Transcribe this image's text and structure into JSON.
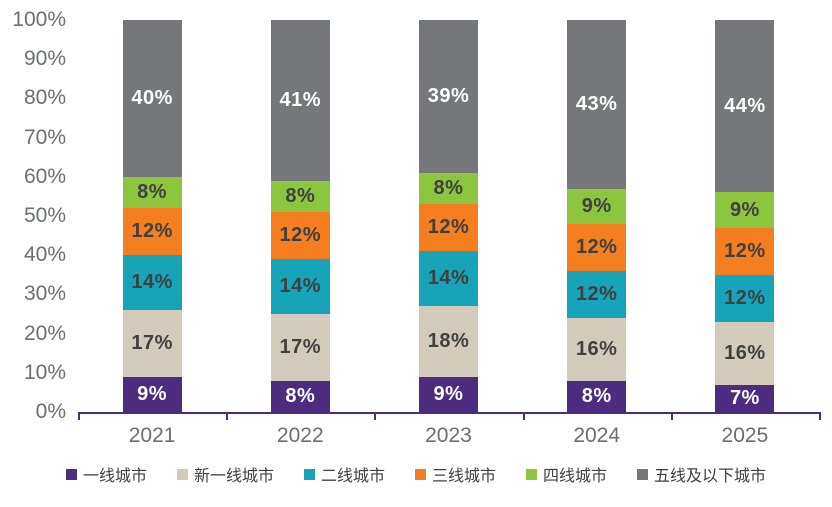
{
  "chart_data": {
    "type": "bar",
    "subtype": "stacked-100-percent-column",
    "title": "",
    "xlabel": "",
    "ylabel": "",
    "categories": [
      "2021",
      "2022",
      "2023",
      "2024",
      "2025"
    ],
    "series": [
      {
        "name": "一线城市",
        "color": "#4b2c7f",
        "label_color": "#ffffff",
        "values": [
          9,
          8,
          9,
          8,
          7
        ]
      },
      {
        "name": "新一线城市",
        "color": "#d2cbbc",
        "label_color": "#404040",
        "values": [
          17,
          17,
          18,
          16,
          16
        ]
      },
      {
        "name": "二线城市",
        "color": "#17a3b8",
        "label_color": "#404040",
        "values": [
          14,
          14,
          14,
          12,
          12
        ]
      },
      {
        "name": "三线城市",
        "color": "#f57e20",
        "label_color": "#404040",
        "values": [
          12,
          12,
          12,
          12,
          12
        ]
      },
      {
        "name": "四线城市",
        "color": "#8cc63e",
        "label_color": "#404040",
        "values": [
          8,
          8,
          8,
          9,
          9
        ]
      },
      {
        "name": "五线及以下城市",
        "color": "#76777b",
        "label_color": "#ffffff",
        "values": [
          40,
          41,
          39,
          43,
          44
        ]
      }
    ],
    "y_ticks": [
      "100%",
      "90%",
      "80%",
      "70%",
      "60%",
      "50%",
      "40%",
      "30%",
      "20%",
      "10%",
      "0%"
    ],
    "ylim": [
      0,
      100
    ],
    "grid": false,
    "legend_position": "bottom",
    "data_label_suffix": "%",
    "colors": {
      "axis": "#4b2c7f",
      "tick_label": "#6d6e71",
      "legend_text": "#3f3f3f",
      "background": "#ffffff"
    }
  }
}
